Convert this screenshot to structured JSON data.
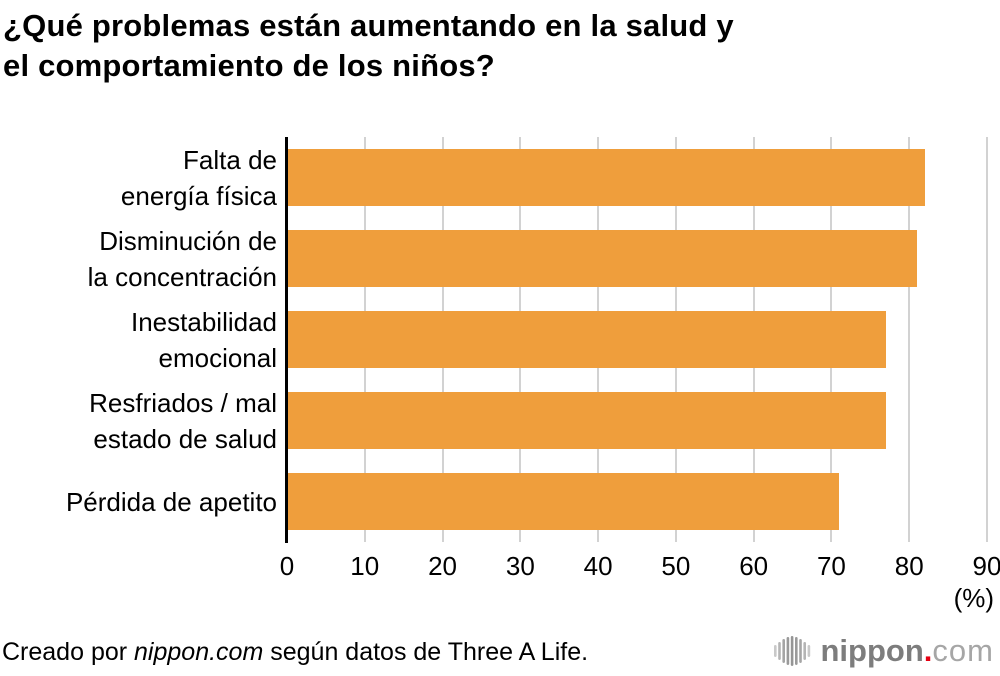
{
  "title": "¿Qué problemas están aumentando en la salud y\nel comportamiento de los niños?",
  "chart_data": {
    "type": "bar",
    "orientation": "horizontal",
    "title": "¿Qué problemas están aumentando en la salud y el comportamiento de los niños?",
    "categories": [
      "Falta de\nenergía física",
      "Disminución de\nla concentración",
      "Inestabilidad\nemocional",
      "Resfriados / mal\nestado de salud",
      "Pérdida de apetito"
    ],
    "values": [
      82,
      81,
      77,
      77,
      71
    ],
    "xlabel": "(%)",
    "ylabel": "",
    "xlim": [
      0,
      90
    ],
    "xticks": [
      0,
      10,
      20,
      30,
      40,
      50,
      60,
      70,
      80,
      90
    ],
    "grid": true,
    "legend": false,
    "bar_color": "#EF9E3C",
    "gridline_color": "#D2D2D2",
    "axis_color": "#000000",
    "text_color": "#000000"
  },
  "footer": {
    "credit_prefix": "Creado por ",
    "credit_site": "nippon.com",
    "credit_suffix": " según datos de Three A Life."
  },
  "logo": {
    "icon": "waveform-bars-icon",
    "name": "nippon",
    "dot": ".",
    "tld": "com",
    "name_color": "#7D7D7D",
    "dot_color": "#E60012",
    "tld_color": "#A6A6A6",
    "icon_bar_colors": [
      "#C9C9C9",
      "#B5B5B5",
      "#A5A5A5",
      "#9A9A9A",
      "#959595",
      "#9A9A9A",
      "#A5A5A5",
      "#B5B5B5",
      "#C9C9C9"
    ],
    "icon_bar_heights": [
      12,
      18,
      24,
      28,
      30,
      28,
      24,
      18,
      12
    ]
  }
}
